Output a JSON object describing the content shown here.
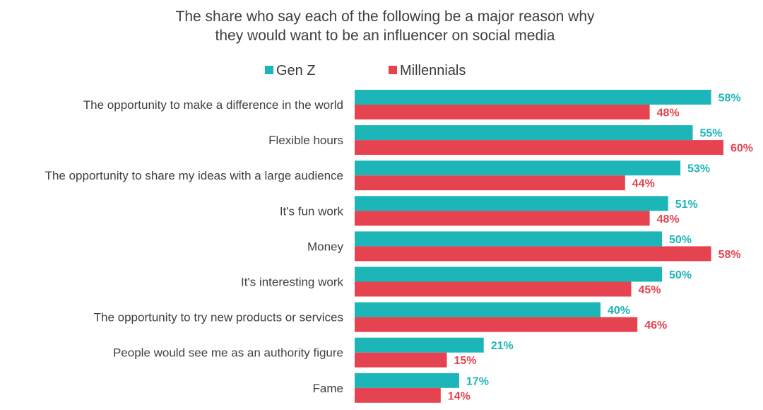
{
  "chart_data": {
    "type": "bar",
    "orientation": "horizontal",
    "title": "The share who say each of the following be a major reason why they would want to be an influencer on social media",
    "title_lines": [
      "The share who say each of the following be a major reason why",
      "they would want to be an influencer on social media"
    ],
    "categories": [
      "The opportunity to make a difference in the world",
      "Flexible hours",
      "The opportunity to share my ideas with a large audience",
      "It's fun work",
      "Money",
      "It's interesting work",
      "The opportunity to try new products or services",
      "People would see me as an authority figure",
      "Fame"
    ],
    "series": [
      {
        "name": "Gen Z",
        "color": "#1cb5b8",
        "values": [
          58,
          55,
          53,
          51,
          50,
          50,
          40,
          21,
          17
        ],
        "labels": [
          "58%",
          "55%",
          "53%",
          "51%",
          "50%",
          "50%",
          "40%",
          "21%",
          "17%"
        ]
      },
      {
        "name": "Millennials",
        "color": "#e5434f",
        "values": [
          48,
          60,
          44,
          48,
          58,
          45,
          46,
          15,
          14
        ],
        "labels": [
          "48%",
          "60%",
          "44%",
          "48%",
          "58%",
          "45%",
          "46%",
          "15%",
          "14%"
        ]
      }
    ],
    "legend": {
      "position": "top-left",
      "items": [
        "Gen Z",
        "Millennials"
      ]
    },
    "xlim": [
      0,
      60
    ],
    "grid": false,
    "xlabel": "",
    "ylabel": ""
  }
}
